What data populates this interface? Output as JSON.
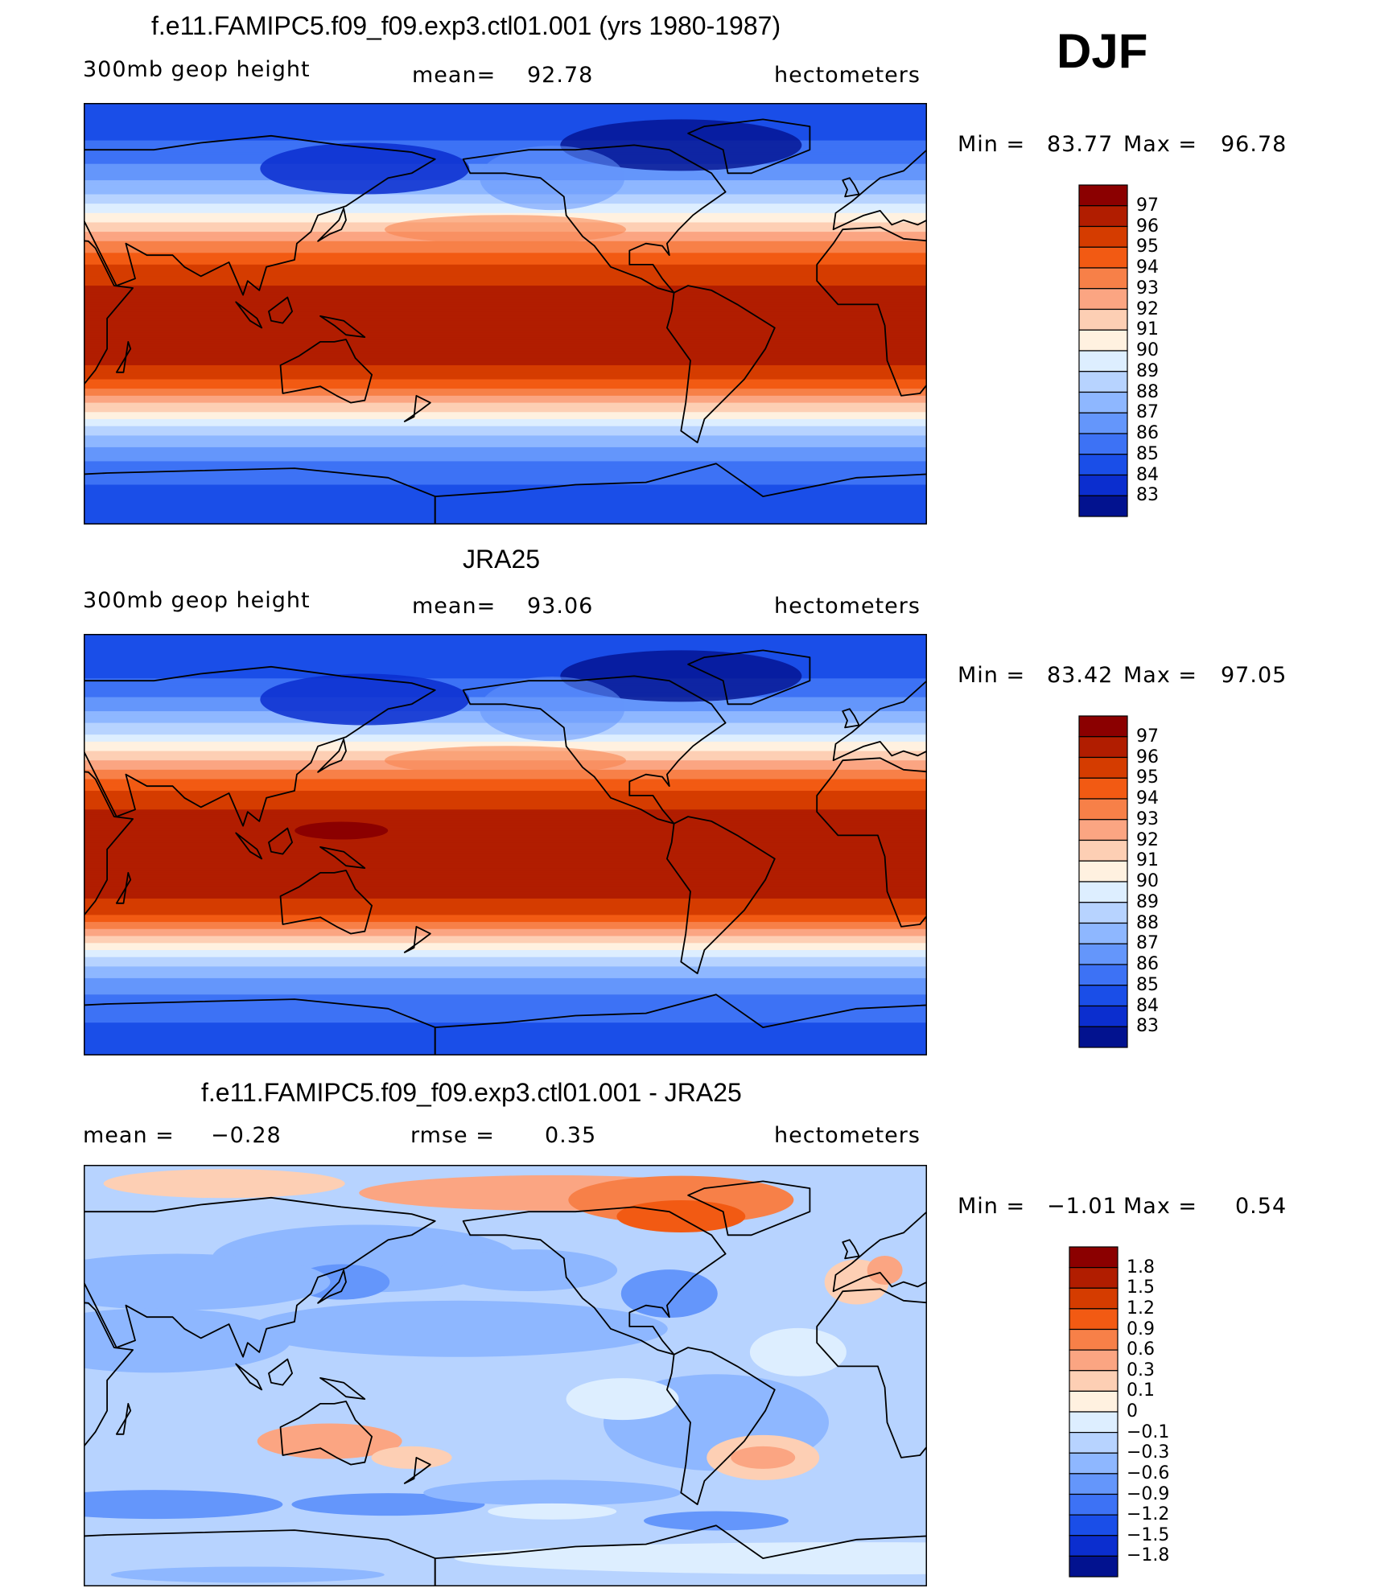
{
  "season": "DJF",
  "panels": [
    {
      "title": "f.e11.FAMIPC5.f09_f09.exp3.ctl01.001 (yrs 1980-1987)",
      "variable": "300mb geop height",
      "mean_label": "mean=",
      "mean_value": "92.78",
      "units": "hectometers",
      "min_label": "Min =",
      "min_value": "83.77",
      "max_label": "Max =",
      "max_value": "96.78"
    },
    {
      "title": "JRA25",
      "variable": "300mb geop height",
      "mean_label": "mean=",
      "mean_value": "93.06",
      "units": "hectometers",
      "min_label": "Min =",
      "min_value": "83.42",
      "max_label": "Max =",
      "max_value": "97.05"
    },
    {
      "title": "f.e11.FAMIPC5.f09_f09.exp3.ctl01.001 - JRA25",
      "mean_label": "mean =",
      "mean_value": "−0.28",
      "rmse_label": "rmse =",
      "rmse_value": "0.35",
      "units": "hectometers",
      "min_label": "Min =",
      "min_value": "−1.01",
      "max_label": "Max =",
      "max_value": "0.54"
    }
  ],
  "chart_data": [
    {
      "type": "heatmap",
      "title": "f.e11.FAMIPC5.f09_f09.exp3.ctl01.001 (yrs 1980-1987)",
      "field": "300mb geop height",
      "units": "hectometers",
      "mean": 92.78,
      "min": 83.77,
      "max": 96.78,
      "projection": "cylindrical equidistant, centered on 180",
      "lat_profile": {
        "lat": [
          90,
          80,
          70,
          60,
          50,
          40,
          30,
          20,
          10,
          0,
          -10,
          -20,
          -30,
          -40,
          -50,
          -60,
          -70,
          -80,
          -90
        ],
        "value": [
          84.2,
          84.5,
          85.3,
          86.5,
          88.2,
          90.8,
          93.3,
          95.2,
          96.2,
          96.4,
          96.5,
          96.3,
          94.7,
          91.5,
          88.3,
          86.3,
          85.2,
          84.6,
          84.4
        ]
      },
      "colorbar": {
        "labels": [
          "97",
          "96",
          "95",
          "94",
          "93",
          "92",
          "91",
          "90",
          "89",
          "88",
          "87",
          "86",
          "85",
          "84",
          "83"
        ],
        "colors": [
          "#8b0000",
          "#b11d00",
          "#d53c00",
          "#f25a13",
          "#f78048",
          "#fba582",
          "#fdcfb4",
          "#fff1e0",
          "#ddeeff",
          "#b7d3ff",
          "#8eb7ff",
          "#6496fb",
          "#3d72f5",
          "#1a4ee8",
          "#0b2ecf",
          "#02128f"
        ]
      }
    },
    {
      "type": "heatmap",
      "title": "JRA25",
      "field": "300mb geop height",
      "units": "hectometers",
      "mean": 93.06,
      "min": 83.42,
      "max": 97.05,
      "projection": "cylindrical equidistant, centered on 180",
      "lat_profile": {
        "lat": [
          90,
          80,
          70,
          60,
          50,
          40,
          30,
          20,
          10,
          0,
          -10,
          -20,
          -30,
          -40,
          -50,
          -60,
          -70,
          -80,
          -90
        ],
        "value": [
          84.0,
          84.3,
          85.1,
          86.4,
          88.3,
          91.0,
          93.6,
          95.5,
          96.5,
          96.6,
          96.7,
          96.5,
          95.0,
          91.8,
          88.5,
          86.4,
          85.3,
          84.8,
          84.5
        ]
      },
      "colorbar": {
        "labels": [
          "97",
          "96",
          "95",
          "94",
          "93",
          "92",
          "91",
          "90",
          "89",
          "88",
          "87",
          "86",
          "85",
          "84",
          "83"
        ],
        "colors": [
          "#8b0000",
          "#b11d00",
          "#d53c00",
          "#f25a13",
          "#f78048",
          "#fba582",
          "#fdcfb4",
          "#fff1e0",
          "#ddeeff",
          "#b7d3ff",
          "#8eb7ff",
          "#6496fb",
          "#3d72f5",
          "#1a4ee8",
          "#0b2ecf",
          "#02128f"
        ]
      }
    },
    {
      "type": "heatmap",
      "title": "f.e11.FAMIPC5.f09_f09.exp3.ctl01.001 - JRA25",
      "units": "hectometers",
      "mean": -0.28,
      "rmse": 0.35,
      "min": -1.01,
      "max": 0.54,
      "projection": "cylindrical equidistant, centered on 180",
      "colorbar": {
        "labels": [
          "1.8",
          "1.5",
          "1.2",
          "0.9",
          "0.6",
          "0.3",
          "0.1",
          "0",
          "−0.1",
          "−0.3",
          "−0.6",
          "−0.9",
          "−1.2",
          "−1.5",
          "−1.8"
        ],
        "colors": [
          "#8b0000",
          "#b11d00",
          "#d53c00",
          "#f25a13",
          "#f78048",
          "#fba582",
          "#fdcfb4",
          "#fff1e0",
          "#ddeeff",
          "#b7d3ff",
          "#8eb7ff",
          "#6496fb",
          "#3d72f5",
          "#1a4ee8",
          "#0b2ecf",
          "#02128f"
        ]
      }
    }
  ]
}
